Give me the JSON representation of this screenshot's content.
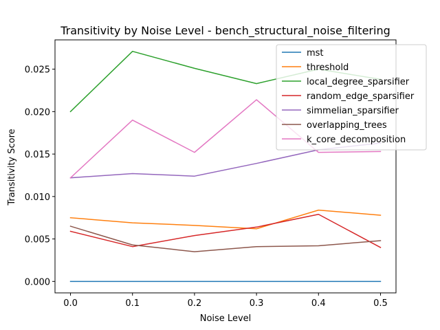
{
  "chart_data": {
    "type": "line",
    "title": "Transitivity by Noise Level - bench_structural_noise_filtering",
    "xlabel": "Noise Level",
    "ylabel": "Transitivity Score",
    "x": [
      0.0,
      0.1,
      0.2,
      0.3,
      0.4,
      0.5
    ],
    "xlim": [
      -0.025,
      0.525
    ],
    "ylim": [
      -0.00135,
      0.02845
    ],
    "xticks": [
      0.0,
      0.1,
      0.2,
      0.3,
      0.4,
      0.5
    ],
    "xtick_labels": [
      "0.0",
      "0.1",
      "0.2",
      "0.3",
      "0.4",
      "0.5"
    ],
    "yticks": [
      0.0,
      0.005,
      0.01,
      0.015,
      0.02,
      0.025
    ],
    "ytick_labels": [
      "0.000",
      "0.005",
      "0.010",
      "0.015",
      "0.020",
      "0.025"
    ],
    "grid": false,
    "legend_position": "top-right",
    "series": [
      {
        "name": "mst",
        "color": "#1f77b4",
        "values": [
          0.0,
          0.0,
          0.0,
          0.0,
          0.0,
          0.0
        ]
      },
      {
        "name": "threshold",
        "color": "#ff7f0e",
        "values": [
          0.0075,
          0.0069,
          0.0066,
          0.0062,
          0.0084,
          0.0078
        ]
      },
      {
        "name": "local_degree_sparsifier",
        "color": "#2ca02c",
        "values": [
          0.02,
          0.0271,
          0.0251,
          0.0233,
          0.025,
          0.0238
        ]
      },
      {
        "name": "random_edge_sparsifier",
        "color": "#d62728",
        "values": [
          0.0059,
          0.0041,
          0.0054,
          0.0064,
          0.0079,
          0.004
        ]
      },
      {
        "name": "simmelian_sparsifier",
        "color": "#9467bd",
        "values": [
          0.0122,
          0.0127,
          0.0124,
          0.0139,
          0.0155,
          0.0163
        ]
      },
      {
        "name": "overlapping_trees",
        "color": "#8c564b",
        "values": [
          0.0065,
          0.0043,
          0.0035,
          0.0041,
          0.0042,
          0.0048
        ]
      },
      {
        "name": "k_core_decomposition",
        "color": "#e377c2",
        "values": [
          0.0122,
          0.019,
          0.0152,
          0.0214,
          0.0152,
          0.0153
        ]
      }
    ]
  }
}
